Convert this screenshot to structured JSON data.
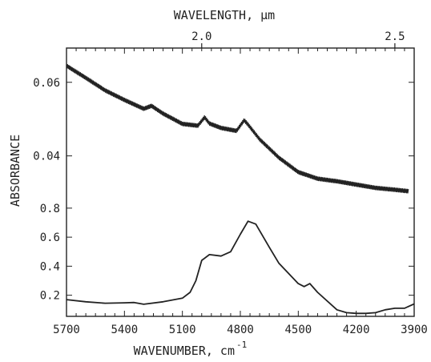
{
  "chart_data": {
    "type": "line",
    "xlabel": "WAVENUMBER, cm",
    "xlabel_sup": "-1",
    "x2label": "WAVELENGTH, µm",
    "ylabel": "ABSORBANCE",
    "xlim": [
      5700,
      3900
    ],
    "x_reversed": true,
    "x_ticks": [
      5700,
      5400,
      5100,
      4800,
      4500,
      4200,
      3900
    ],
    "x_tick_labels": [
      "5700",
      "5400",
      "5100",
      "4800",
      "4500",
      "4200",
      "3900"
    ],
    "x2_ticks": [
      {
        "label": "2.0",
        "wavenumber": 5000
      },
      {
        "label": "2.5",
        "wavenumber": 4000
      }
    ],
    "upper_axis": {
      "ylim": [
        0.031,
        0.068
      ],
      "ticks": [
        0.04,
        0.06
      ],
      "tick_labels": [
        "0.04",
        "0.06"
      ]
    },
    "lower_axis": {
      "ylim": [
        0.06,
        1.02
      ],
      "ticks": [
        0.2,
        0.4,
        0.6,
        0.8
      ],
      "tick_labels": [
        "0.2",
        "0.4",
        "0.6",
        "0.8"
      ]
    },
    "series": [
      {
        "axis": "upper",
        "noisy": true,
        "x": [
          5700,
          5600,
          5500,
          5400,
          5300,
          5260,
          5200,
          5100,
          5020,
          4985,
          4960,
          4900,
          4820,
          4780,
          4760,
          4700,
          4600,
          4500,
          4400,
          4300,
          4200,
          4100,
          4000,
          3930
        ],
        "y": [
          0.0645,
          0.0612,
          0.0578,
          0.0552,
          0.0528,
          0.0536,
          0.0515,
          0.0487,
          0.0482,
          0.0505,
          0.0488,
          0.0476,
          0.0468,
          0.0497,
          0.0485,
          0.0445,
          0.0395,
          0.0356,
          0.0338,
          0.0331,
          0.0322,
          0.0313,
          0.0308,
          0.0304
        ]
      },
      {
        "axis": "lower",
        "x": [
          5700,
          5600,
          5500,
          5400,
          5350,
          5300,
          5200,
          5100,
          5060,
          5030,
          5000,
          4960,
          4900,
          4850,
          4800,
          4760,
          4720,
          4650,
          4600,
          4500,
          4470,
          4440,
          4400,
          4300,
          4250,
          4200,
          4150,
          4100,
          4050,
          4000,
          3950,
          3900
        ],
        "y": [
          0.17,
          0.155,
          0.145,
          0.148,
          0.15,
          0.138,
          0.155,
          0.18,
          0.22,
          0.3,
          0.44,
          0.48,
          0.47,
          0.5,
          0.62,
          0.71,
          0.69,
          0.53,
          0.42,
          0.28,
          0.26,
          0.28,
          0.22,
          0.1,
          0.08,
          0.075,
          0.075,
          0.08,
          0.1,
          0.11,
          0.11,
          0.14
        ]
      }
    ]
  }
}
